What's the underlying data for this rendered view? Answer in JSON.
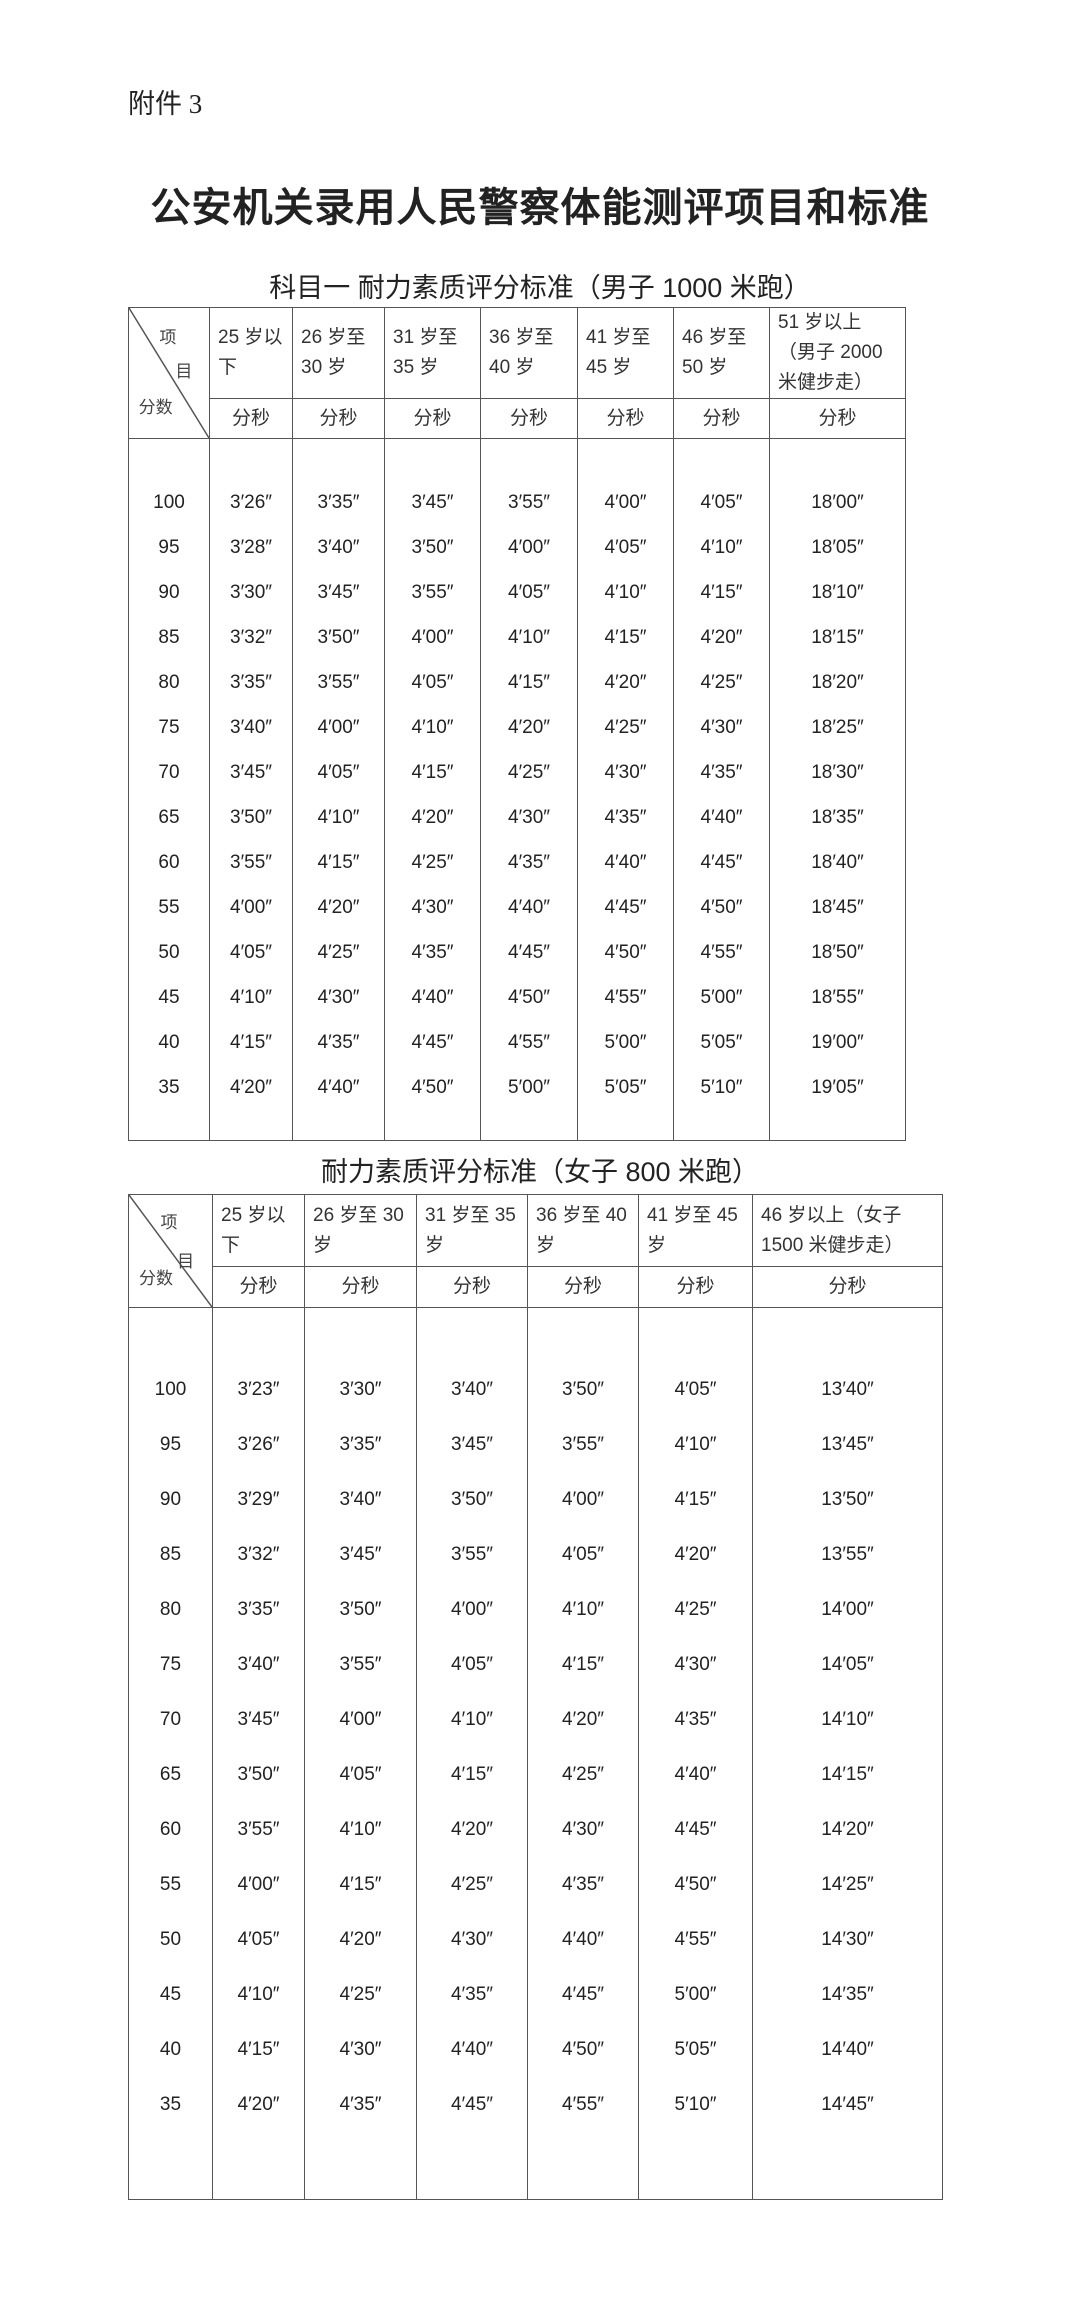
{
  "attachment": "附件 3",
  "title": "公安机关录用人民警察体能测评项目和标准",
  "tables": [
    {
      "title": "科目一  耐力素质评分标准（男子 1000 米跑）",
      "corner": {
        "item1": "项",
        "item2": "目",
        "score": "分数"
      },
      "columns": [
        "25 岁以下",
        "26 岁至 30 岁",
        "31 岁至 35 岁",
        "36 岁至 40 岁",
        "41 岁至 45 岁",
        "46 岁至 50 岁",
        "51 岁以上（男子 2000 米健步走）"
      ],
      "unit": "分秒",
      "rows": [
        [
          "100",
          "3′26″",
          "3′35″",
          "3′45″",
          "3′55″",
          "4′00″",
          "4′05″",
          "18′00″"
        ],
        [
          "95",
          "3′28″",
          "3′40″",
          "3′50″",
          "4′00″",
          "4′05″",
          "4′10″",
          "18′05″"
        ],
        [
          "90",
          "3′30″",
          "3′45″",
          "3′55″",
          "4′05″",
          "4′10″",
          "4′15″",
          "18′10″"
        ],
        [
          "85",
          "3′32″",
          "3′50″",
          "4′00″",
          "4′10″",
          "4′15″",
          "4′20″",
          "18′15″"
        ],
        [
          "80",
          "3′35″",
          "3′55″",
          "4′05″",
          "4′15″",
          "4′20″",
          "4′25″",
          "18′20″"
        ],
        [
          "75",
          "3′40″",
          "4′00″",
          "4′10″",
          "4′20″",
          "4′25″",
          "4′30″",
          "18′25″"
        ],
        [
          "70",
          "3′45″",
          "4′05″",
          "4′15″",
          "4′25″",
          "4′30″",
          "4′35″",
          "18′30″"
        ],
        [
          "65",
          "3′50″",
          "4′10″",
          "4′20″",
          "4′30″",
          "4′35″",
          "4′40″",
          "18′35″"
        ],
        [
          "60",
          "3′55″",
          "4′15″",
          "4′25″",
          "4′35″",
          "4′40″",
          "4′45″",
          "18′40″"
        ],
        [
          "55",
          "4′00″",
          "4′20″",
          "4′30″",
          "4′40″",
          "4′45″",
          "4′50″",
          "18′45″"
        ],
        [
          "50",
          "4′05″",
          "4′25″",
          "4′35″",
          "4′45″",
          "4′50″",
          "4′55″",
          "18′50″"
        ],
        [
          "45",
          "4′10″",
          "4′30″",
          "4′40″",
          "4′50″",
          "4′55″",
          "5′00″",
          "18′55″"
        ],
        [
          "40",
          "4′15″",
          "4′35″",
          "4′45″",
          "4′55″",
          "5′00″",
          "5′05″",
          "19′00″"
        ],
        [
          "35",
          "4′20″",
          "4′40″",
          "4′50″",
          "5′00″",
          "5′05″",
          "5′10″",
          "19′05″"
        ]
      ]
    },
    {
      "title": "耐力素质评分标准（女子 800 米跑）",
      "corner": {
        "item1": "项",
        "item2": "目",
        "score": "分数"
      },
      "columns": [
        "25 岁以下",
        "26 岁至 30 岁",
        "31 岁至 35 岁",
        "36 岁至 40 岁",
        "41 岁至 45 岁",
        "46 岁以上（女子 1500 米健步走）"
      ],
      "unit": "分秒",
      "rows": [
        [
          "100",
          "3′23″",
          "3′30″",
          "3′40″",
          "3′50″",
          "4′05″",
          "13′40″"
        ],
        [
          "95",
          "3′26″",
          "3′35″",
          "3′45″",
          "3′55″",
          "4′10″",
          "13′45″"
        ],
        [
          "90",
          "3′29″",
          "3′40″",
          "3′50″",
          "4′00″",
          "4′15″",
          "13′50″"
        ],
        [
          "85",
          "3′32″",
          "3′45″",
          "3′55″",
          "4′05″",
          "4′20″",
          "13′55″"
        ],
        [
          "80",
          "3′35″",
          "3′50″",
          "4′00″",
          "4′10″",
          "4′25″",
          "14′00″"
        ],
        [
          "75",
          "3′40″",
          "3′55″",
          "4′05″",
          "4′15″",
          "4′30″",
          "14′05″"
        ],
        [
          "70",
          "3′45″",
          "4′00″",
          "4′10″",
          "4′20″",
          "4′35″",
          "14′10″"
        ],
        [
          "65",
          "3′50″",
          "4′05″",
          "4′15″",
          "4′25″",
          "4′40″",
          "14′15″"
        ],
        [
          "60",
          "3′55″",
          "4′10″",
          "4′20″",
          "4′30″",
          "4′45″",
          "14′20″"
        ],
        [
          "55",
          "4′00″",
          "4′15″",
          "4′25″",
          "4′35″",
          "4′50″",
          "14′25″"
        ],
        [
          "50",
          "4′05″",
          "4′20″",
          "4′30″",
          "4′40″",
          "4′55″",
          "14′30″"
        ],
        [
          "45",
          "4′10″",
          "4′25″",
          "4′35″",
          "4′45″",
          "5′00″",
          "14′35″"
        ],
        [
          "40",
          "4′15″",
          "4′30″",
          "4′40″",
          "4′50″",
          "5′05″",
          "14′40″"
        ],
        [
          "35",
          "4′20″",
          "4′35″",
          "4′45″",
          "4′55″",
          "5′10″",
          "14′45″"
        ]
      ]
    }
  ]
}
